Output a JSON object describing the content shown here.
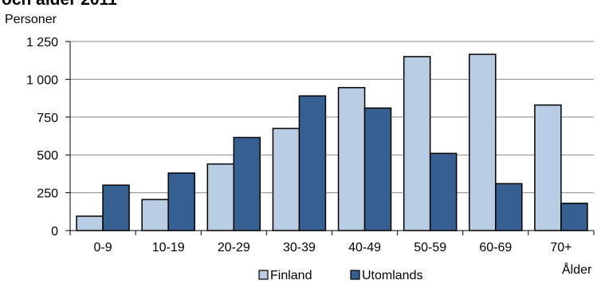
{
  "chart_data": {
    "type": "bar",
    "title": "och ålder 2011",
    "ylabel": "Personer",
    "xlabel": "Ålder",
    "categories": [
      "0-9",
      "10-19",
      "20-29",
      "30-39",
      "40-49",
      "50-59",
      "60-69",
      "70+"
    ],
    "series": [
      {
        "name": "Finland",
        "color": "#b8cce4",
        "values": [
          95,
          205,
          440,
          675,
          945,
          1150,
          1165,
          830
        ]
      },
      {
        "name": "Utomlands",
        "color": "#376092",
        "values": [
          300,
          380,
          615,
          890,
          810,
          510,
          310,
          180
        ]
      }
    ],
    "ylim": [
      0,
      1250
    ],
    "yticks": [
      0,
      250,
      500,
      750,
      1000,
      1250
    ],
    "ytick_labels": [
      "0",
      "250",
      "500",
      "750",
      "1 000",
      "1 250"
    ],
    "grid": true,
    "legend": "bottom"
  }
}
